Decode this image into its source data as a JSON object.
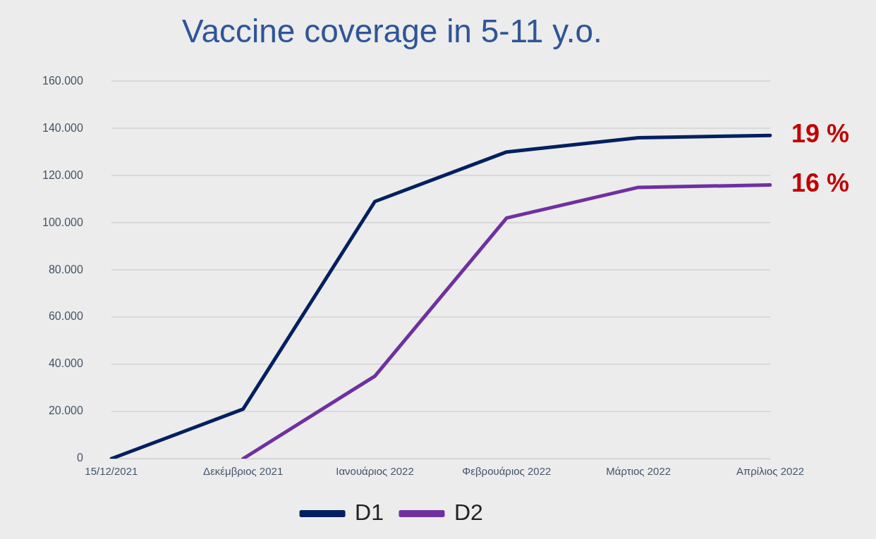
{
  "chart_data": {
    "type": "line",
    "title": "Vaccine coverage in 5-11 y.o.",
    "categories": [
      "15/12/2021",
      "Δεκέμβριος 2021",
      "Ιανουάριος 2022",
      "Φεβρουάριος 2022",
      "Μάρτιος 2022",
      "Απρίλιος 2022"
    ],
    "series": [
      {
        "name": "D1",
        "color": "#002060",
        "values": [
          0,
          21000,
          109000,
          130000,
          136000,
          137000
        ]
      },
      {
        "name": "D2",
        "color": "#7030a0",
        "values": [
          null,
          0,
          35000,
          102000,
          115000,
          116000
        ]
      }
    ],
    "ylim": [
      0,
      160000
    ],
    "yticks": [
      {
        "value": 0,
        "label": "0"
      },
      {
        "value": 20000,
        "label": "20.000"
      },
      {
        "value": 40000,
        "label": "40.000"
      },
      {
        "value": 60000,
        "label": "60.000"
      },
      {
        "value": 80000,
        "label": "80.000"
      },
      {
        "value": 100000,
        "label": "100.000"
      },
      {
        "value": 120000,
        "label": "120.000"
      },
      {
        "value": 140000,
        "label": "140.000"
      },
      {
        "value": 160000,
        "label": "160.000"
      }
    ],
    "grid": "y",
    "legend": "bottom",
    "marker": "none",
    "line_style": "solid",
    "annotations": [
      {
        "text": "19 %",
        "x": "Απρίλιος 2022",
        "y": 137000
      },
      {
        "text": "16 %",
        "x": "Απρίλιος 2022",
        "y": 116000
      }
    ]
  }
}
